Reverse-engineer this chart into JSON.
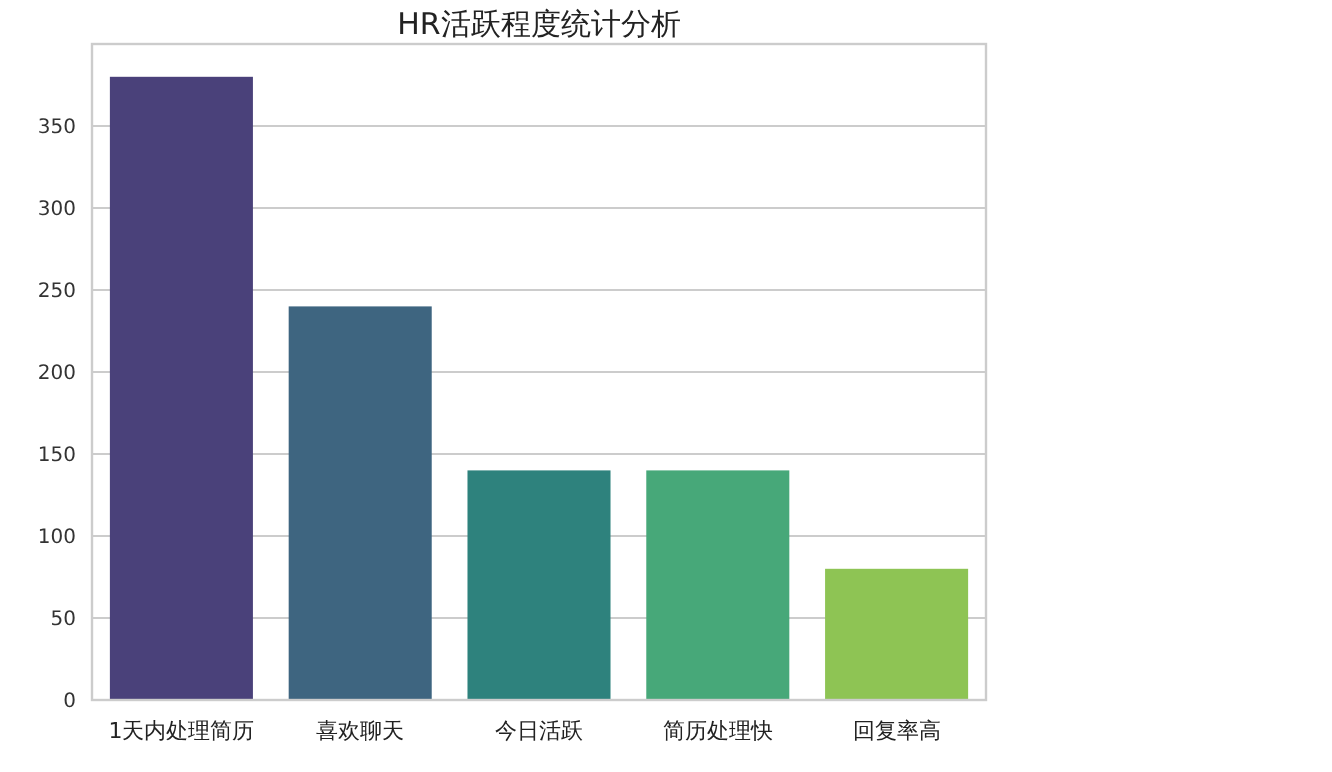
{
  "chart_data": {
    "type": "bar",
    "title": "HR活跃程度统计分析",
    "categories": [
      "1天内处理简历",
      "喜欢聊天",
      "今日活跃",
      "简历处理快",
      "回复率高"
    ],
    "values": [
      380,
      240,
      140,
      140,
      80
    ],
    "colors": [
      "#4a417a",
      "#3e6580",
      "#2e827d",
      "#47a879",
      "#8ec454"
    ],
    "ylim": [
      0,
      400
    ],
    "yticks": [
      0,
      50,
      100,
      150,
      200,
      250,
      300,
      350
    ],
    "grid": "y"
  }
}
